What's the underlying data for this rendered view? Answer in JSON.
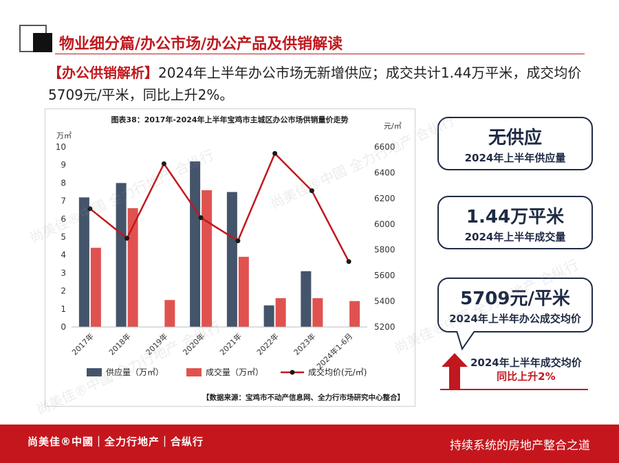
{
  "page_title": "物业细分篇/办公市场/办公产品及供销解读",
  "headline": {
    "tag": "【办公供销解析】",
    "text": "2024年上半年办公市场无新增供应；成交共计1.44万平米，成交均价5709元/平米，同比上升2%。"
  },
  "chart_data": {
    "type": "bar",
    "title": "图表38：2017年-2024年上半年宝鸡市主城区办公市场供销量价走势",
    "categories": [
      "2017年",
      "2018年",
      "2019年",
      "2020年",
      "2021年",
      "2022年",
      "2023年",
      "2024年1-6月"
    ],
    "y_left_unit": "万㎡",
    "y_right_unit": "元/㎡",
    "y_left_range": [
      0,
      10
    ],
    "y_left_ticks": [
      "0",
      "1",
      "2",
      "3",
      "4",
      "5",
      "6",
      "7",
      "8",
      "9",
      "10"
    ],
    "y_right_range": [
      5200,
      6600
    ],
    "y_right_ticks": [
      "5200",
      "5400",
      "5600",
      "5800",
      "6000",
      "6200",
      "6400",
      "6600"
    ],
    "series": [
      {
        "name": "供应量（万㎡）",
        "type": "bar",
        "axis": "left",
        "color": "#44546a",
        "values": [
          7.2,
          8.0,
          0,
          9.2,
          7.5,
          1.2,
          3.1,
          0
        ]
      },
      {
        "name": "成交量（万㎡）",
        "type": "bar",
        "axis": "left",
        "color": "#e0524f",
        "values": [
          4.4,
          6.6,
          1.5,
          7.6,
          3.9,
          1.6,
          1.6,
          1.44
        ]
      },
      {
        "name": "成交均价(元/㎡)",
        "type": "line",
        "axis": "right",
        "color": "#c0181e",
        "marker_color": "#1a1a1a",
        "values": [
          6120,
          5890,
          6470,
          6050,
          5870,
          6550,
          6260,
          5709
        ]
      }
    ],
    "legend_position": "bottom",
    "grid": false,
    "source": "【数据来源：宝鸡市不动产信息网、全力行市场研究中心整合】"
  },
  "cards": [
    {
      "big": "无供应",
      "small": "2024年上半年供应量"
    },
    {
      "big": "1.44万平米",
      "small": "2024年上半年成交量"
    },
    {
      "big": "5709元/平米",
      "small": "2024年上半年办公成交均价"
    }
  ],
  "trend": {
    "line1": "2024年上半年成交均价",
    "line2": "同比上升2%",
    "arrow_color": "#c0181e"
  },
  "footer": {
    "brand": "尚美佳®中國｜全力行地产｜合纵行",
    "slogan": "持续系统的房地产整合之道"
  },
  "watermark": "尚美佳®中國 全力行地产 合纵行"
}
